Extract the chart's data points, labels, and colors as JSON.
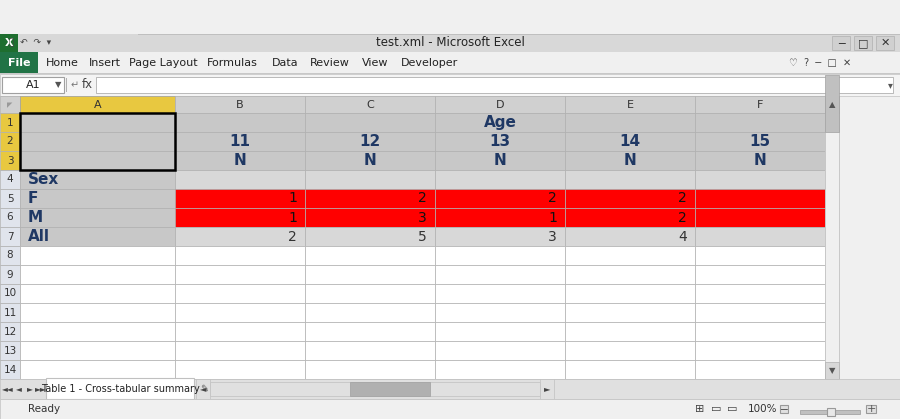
{
  "title_bar": "test.xml - Microsoft Excel",
  "sheet_tab": "Table 1 - Cross-tabular summary",
  "col_headers": [
    "A",
    "B",
    "C",
    "D",
    "E",
    "F"
  ],
  "ages": [
    "11",
    "12",
    "13",
    "14",
    "15"
  ],
  "n_labels": [
    "N",
    "N",
    "N",
    "N",
    "N"
  ],
  "row_labels": [
    "Sex",
    "F",
    "M",
    "All"
  ],
  "f_data": [
    "1",
    "2",
    "2",
    "2",
    ""
  ],
  "m_data": [
    "1",
    "3",
    "1",
    "2",
    ""
  ],
  "all_data": [
    "2",
    "5",
    "3",
    "4",
    ""
  ],
  "blue_color": "#1F3864",
  "red_color": "#FF0000",
  "gray_header": "#C8C8C8",
  "gray_light": "#D8D8D8",
  "gray_col_hdr": "#D0D0D0",
  "gray_row_num_sel": "#E8C840",
  "yellow_cell": "#E8C840",
  "white": "#FFFFFF",
  "title_bar_bg": "#DEDEDE",
  "ribbon_bg": "#F0F0F0",
  "file_green": "#217346",
  "status_bg": "#F0F0F0",
  "tab_bg": "#E8E8E8",
  "scroll_bg": "#F0F0F0",
  "scroll_thumb": "#B0B0B0"
}
